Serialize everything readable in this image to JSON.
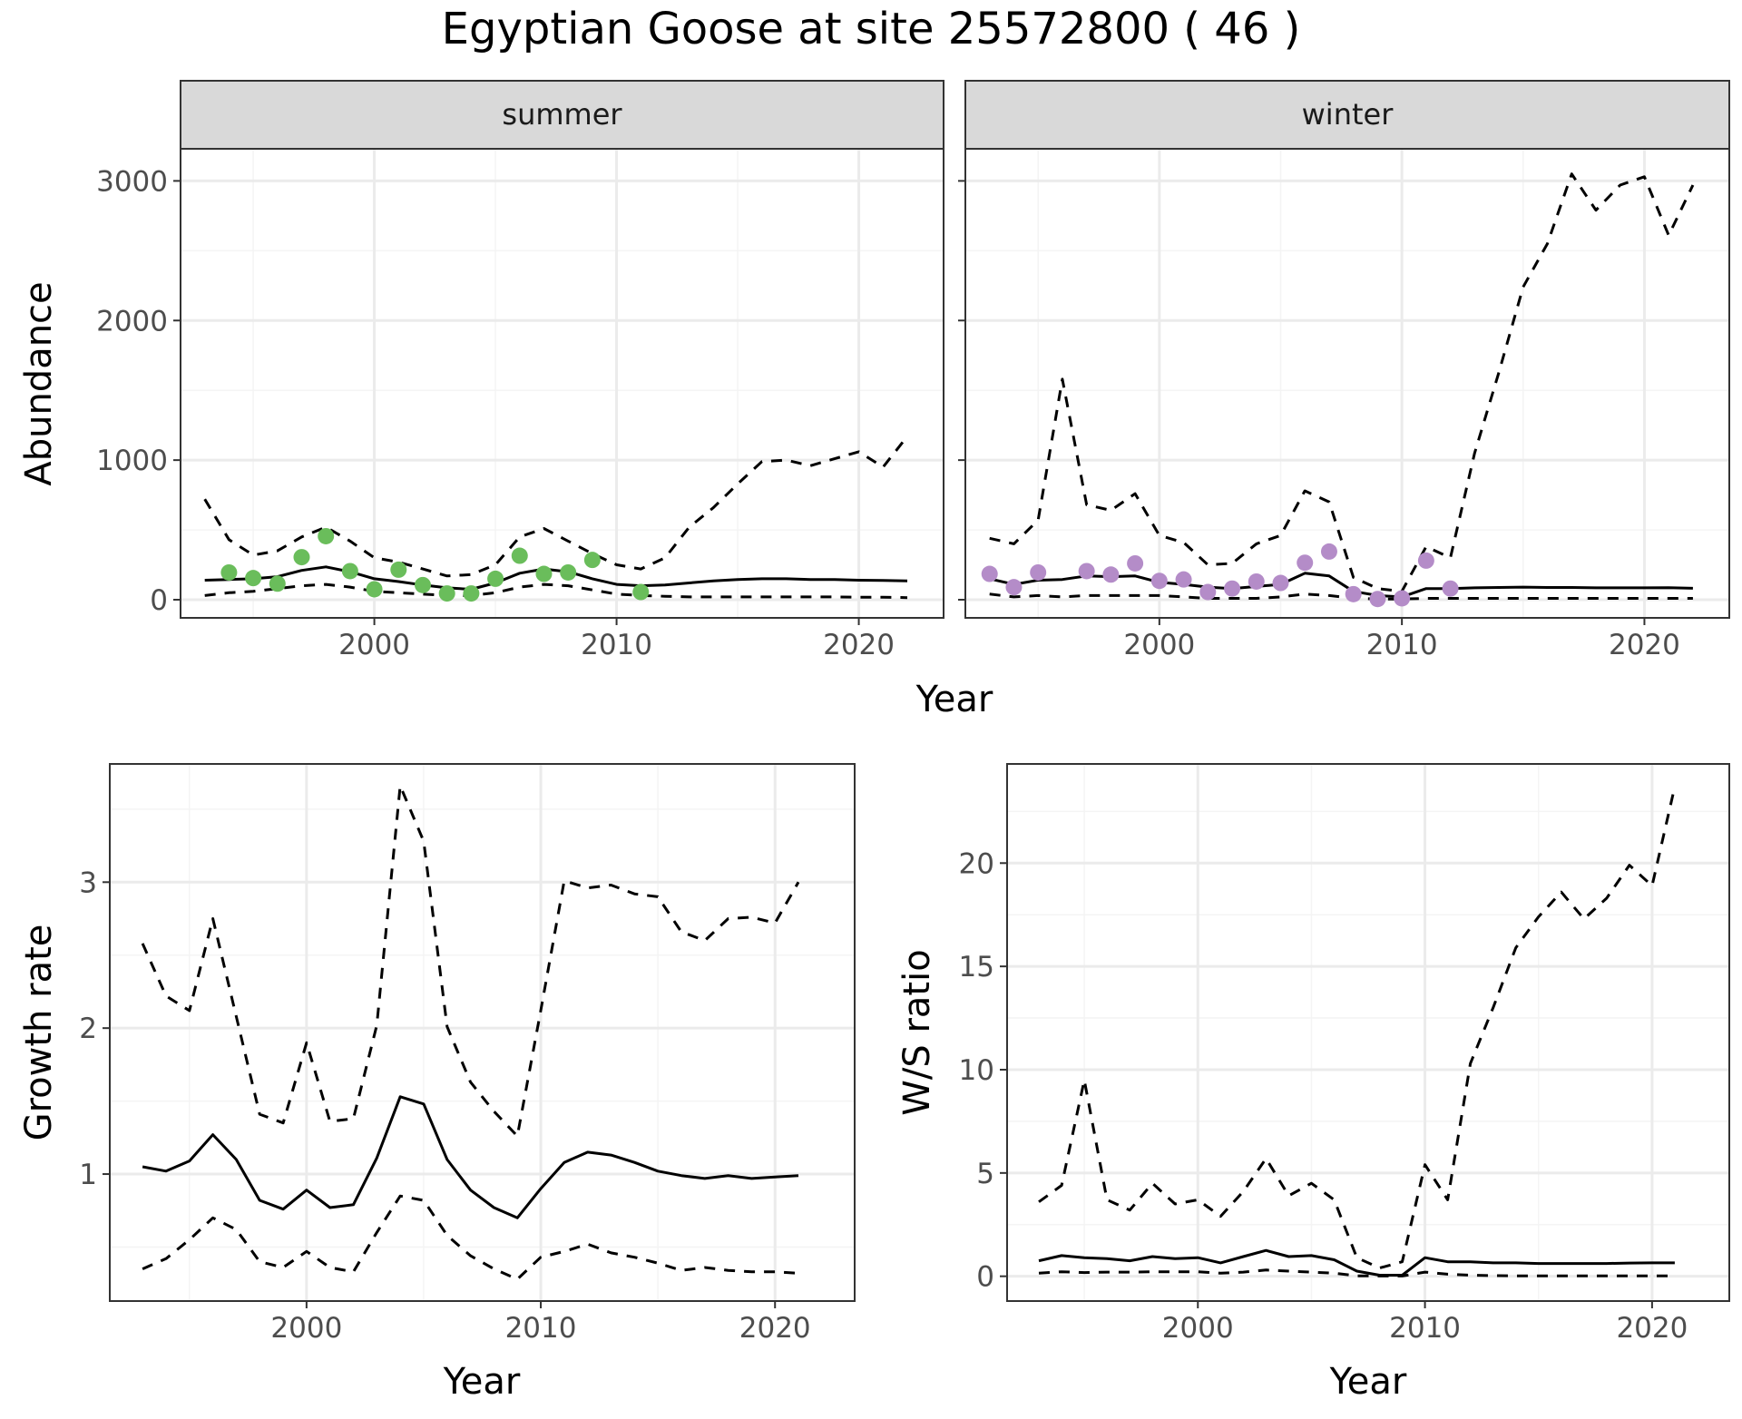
{
  "title": "Egyptian Goose at site 25572800 ( 46 )",
  "colors": {
    "summer_points": "#6ABD5B",
    "winter_points": "#B48CC8",
    "strip_fill": "#D9D9D9",
    "grid_major": "#EBEBEB",
    "grid_minor": "#F4F4F4",
    "line": "#000000"
  },
  "chart_data": [
    {
      "type": "line",
      "panel": "abundance-summer",
      "strip_label": "summer",
      "ylabel": "Abundance",
      "xlabel": "Year",
      "xlim": [
        1992,
        2023.5
      ],
      "ylim": [
        -130,
        3230
      ],
      "xticks": [
        2000,
        2010,
        2020
      ],
      "yticks": [
        0,
        1000,
        2000,
        3000
      ],
      "legend": "none",
      "series": [
        {
          "role": "estimate",
          "style": "solid",
          "x": [
            1993,
            1994,
            1995,
            1996,
            1997,
            1998,
            1999,
            2000,
            2001,
            2002,
            2003,
            2004,
            2005,
            2006,
            2007,
            2008,
            2009,
            2010,
            2011,
            2012,
            2013,
            2014,
            2015,
            2016,
            2017,
            2018,
            2019,
            2020,
            2021,
            2022
          ],
          "y": [
            140,
            145,
            150,
            165,
            210,
            235,
            200,
            150,
            130,
            105,
            85,
            75,
            120,
            190,
            220,
            200,
            150,
            110,
            100,
            105,
            120,
            135,
            145,
            150,
            150,
            145,
            145,
            140,
            138,
            135
          ]
        },
        {
          "role": "upper",
          "style": "dashed",
          "x": [
            1993,
            1994,
            1995,
            1996,
            1997,
            1998,
            1999,
            2000,
            2001,
            2002,
            2003,
            2004,
            2005,
            2006,
            2007,
            2008,
            2009,
            2010,
            2011,
            2012,
            2013,
            2014,
            2015,
            2016,
            2017,
            2018,
            2019,
            2020,
            2021,
            2022
          ],
          "y": [
            720,
            430,
            320,
            350,
            450,
            520,
            420,
            300,
            270,
            220,
            170,
            180,
            250,
            450,
            510,
            420,
            330,
            250,
            220,
            300,
            520,
            660,
            830,
            990,
            1000,
            960,
            1010,
            1060,
            950,
            1170
          ]
        },
        {
          "role": "lower",
          "style": "dashed",
          "x": [
            1993,
            1994,
            1995,
            1996,
            1997,
            1998,
            1999,
            2000,
            2001,
            2002,
            2003,
            2004,
            2005,
            2006,
            2007,
            2008,
            2009,
            2010,
            2011,
            2012,
            2013,
            2014,
            2015,
            2016,
            2017,
            2018,
            2019,
            2020,
            2021,
            2022
          ],
          "y": [
            30,
            50,
            60,
            80,
            100,
            110,
            90,
            60,
            50,
            40,
            30,
            30,
            50,
            90,
            110,
            100,
            70,
            40,
            30,
            25,
            20,
            20,
            20,
            20,
            20,
            20,
            20,
            18,
            18,
            15
          ]
        },
        {
          "role": "observed",
          "style": "points",
          "x": [
            1994,
            1995,
            1996,
            1997,
            1998,
            1999,
            2000,
            2001,
            2002,
            2003,
            2004,
            2005,
            2006,
            2007,
            2008,
            2009,
            2011
          ],
          "y": [
            195,
            155,
            115,
            305,
            455,
            205,
            75,
            215,
            105,
            45,
            45,
            150,
            315,
            185,
            195,
            285,
            55
          ]
        }
      ]
    },
    {
      "type": "line",
      "panel": "abundance-winter",
      "strip_label": "winter",
      "xlim": [
        1992,
        2023.5
      ],
      "ylim": [
        -130,
        3230
      ],
      "xticks": [
        2000,
        2010,
        2020
      ],
      "yticks": [
        0,
        1000,
        2000,
        3000
      ],
      "legend": "none",
      "series": [
        {
          "role": "estimate",
          "style": "solid",
          "x": [
            1993,
            1994,
            1995,
            1996,
            1997,
            1998,
            1999,
            2000,
            2001,
            2002,
            2003,
            2004,
            2005,
            2006,
            2007,
            2008,
            2009,
            2010,
            2011,
            2012,
            2013,
            2014,
            2015,
            2016,
            2017,
            2018,
            2019,
            2020,
            2021,
            2022
          ],
          "y": [
            150,
            110,
            140,
            145,
            170,
            165,
            170,
            125,
            110,
            90,
            80,
            95,
            110,
            190,
            170,
            60,
            30,
            20,
            80,
            80,
            85,
            88,
            90,
            88,
            88,
            85,
            85,
            85,
            86,
            82
          ]
        },
        {
          "role": "upper",
          "style": "dashed",
          "x": [
            1993,
            1994,
            1995,
            1996,
            1997,
            1998,
            1999,
            2000,
            2001,
            2002,
            2003,
            2004,
            2005,
            2006,
            2007,
            2008,
            2009,
            2010,
            2011,
            2012,
            2013,
            2014,
            2015,
            2016,
            2017,
            2018,
            2019,
            2020,
            2021,
            2022
          ],
          "y": [
            440,
            400,
            570,
            1580,
            680,
            640,
            760,
            460,
            410,
            250,
            260,
            400,
            460,
            780,
            700,
            160,
            80,
            60,
            380,
            300,
            1050,
            1630,
            2240,
            2550,
            3050,
            2790,
            2970,
            3030,
            2610,
            2970
          ]
        },
        {
          "role": "lower",
          "style": "dashed",
          "x": [
            1993,
            1994,
            1995,
            1996,
            1997,
            1998,
            1999,
            2000,
            2001,
            2002,
            2003,
            2004,
            2005,
            2006,
            2007,
            2008,
            2009,
            2010,
            2011,
            2012,
            2013,
            2014,
            2015,
            2016,
            2017,
            2018,
            2019,
            2020,
            2021,
            2022
          ],
          "y": [
            40,
            20,
            30,
            20,
            30,
            30,
            30,
            30,
            20,
            10,
            10,
            10,
            20,
            40,
            30,
            10,
            5,
            5,
            10,
            10,
            10,
            10,
            10,
            10,
            10,
            10,
            10,
            10,
            10,
            10
          ]
        },
        {
          "role": "observed",
          "style": "points",
          "x": [
            1993,
            1994,
            1995,
            1997,
            1998,
            1999,
            2000,
            2001,
            2002,
            2003,
            2004,
            2005,
            2006,
            2007,
            2008,
            2009,
            2010,
            2011,
            2012
          ],
          "y": [
            185,
            90,
            195,
            205,
            180,
            260,
            135,
            145,
            55,
            80,
            130,
            120,
            265,
            345,
            40,
            5,
            10,
            280,
            80
          ]
        }
      ]
    },
    {
      "type": "line",
      "panel": "growth-rate",
      "ylabel": "Growth rate",
      "xlabel": "Year",
      "xlim": [
        1991.6,
        2023.4
      ],
      "ylim": [
        0.13,
        3.81
      ],
      "xticks": [
        2000,
        2010,
        2020
      ],
      "yticks": [
        1,
        2,
        3
      ],
      "legend": "none",
      "series": [
        {
          "role": "estimate",
          "style": "solid",
          "x": [
            1993,
            1994,
            1995,
            1996,
            1997,
            1998,
            1999,
            2000,
            2001,
            2002,
            2003,
            2004,
            2005,
            2006,
            2007,
            2008,
            2009,
            2010,
            2011,
            2012,
            2013,
            2014,
            2015,
            2016,
            2017,
            2018,
            2019,
            2020,
            2021
          ],
          "y": [
            1.05,
            1.02,
            1.09,
            1.27,
            1.1,
            0.82,
            0.76,
            0.89,
            0.77,
            0.79,
            1.11,
            1.53,
            1.48,
            1.1,
            0.89,
            0.77,
            0.7,
            0.9,
            1.08,
            1.15,
            1.13,
            1.08,
            1.02,
            0.99,
            0.97,
            0.99,
            0.97,
            0.98,
            0.99
          ]
        },
        {
          "role": "upper",
          "style": "dashed",
          "x": [
            1993,
            1994,
            1995,
            1996,
            1997,
            1998,
            1999,
            2000,
            2001,
            2002,
            2003,
            2004,
            2005,
            2006,
            2007,
            2008,
            2009,
            2010,
            2011,
            2012,
            2013,
            2014,
            2015,
            2016,
            2017,
            2018,
            2019,
            2020,
            2021
          ],
          "y": [
            2.58,
            2.22,
            2.12,
            2.75,
            2.08,
            1.41,
            1.35,
            1.9,
            1.36,
            1.38,
            2.02,
            3.66,
            3.28,
            2.01,
            1.63,
            1.43,
            1.26,
            2.12,
            3.01,
            2.96,
            2.98,
            2.92,
            2.9,
            2.66,
            2.6,
            2.75,
            2.76,
            2.72,
            3.0
          ]
        },
        {
          "role": "lower",
          "style": "dashed",
          "x": [
            1993,
            1994,
            1995,
            1996,
            1997,
            1998,
            1999,
            2000,
            2001,
            2002,
            2003,
            2004,
            2005,
            2006,
            2007,
            2008,
            2009,
            2010,
            2011,
            2012,
            2013,
            2014,
            2015,
            2016,
            2017,
            2018,
            2019,
            2020,
            2021
          ],
          "y": [
            0.35,
            0.42,
            0.55,
            0.7,
            0.62,
            0.4,
            0.36,
            0.47,
            0.36,
            0.33,
            0.6,
            0.85,
            0.82,
            0.58,
            0.44,
            0.35,
            0.28,
            0.43,
            0.47,
            0.52,
            0.46,
            0.43,
            0.39,
            0.34,
            0.36,
            0.34,
            0.33,
            0.33,
            0.32
          ]
        }
      ]
    },
    {
      "type": "line",
      "panel": "ws-ratio",
      "ylabel": "W/S ratio",
      "xlabel": "Year",
      "xlim": [
        1991.6,
        2023.4
      ],
      "ylim": [
        -1.2,
        24.8
      ],
      "xticks": [
        2000,
        2010,
        2020
      ],
      "yticks": [
        0,
        5,
        10,
        15,
        20
      ],
      "legend": "none",
      "series": [
        {
          "role": "estimate",
          "style": "solid",
          "x": [
            1993,
            1994,
            1995,
            1996,
            1997,
            1998,
            1999,
            2000,
            2001,
            2002,
            2003,
            2004,
            2005,
            2006,
            2007,
            2008,
            2009,
            2010,
            2011,
            2012,
            2013,
            2014,
            2015,
            2016,
            2017,
            2018,
            2019,
            2020,
            2021
          ],
          "y": [
            0.75,
            1.0,
            0.9,
            0.85,
            0.75,
            0.95,
            0.85,
            0.9,
            0.65,
            0.95,
            1.25,
            0.95,
            1.0,
            0.8,
            0.25,
            0.05,
            0.05,
            0.9,
            0.7,
            0.7,
            0.65,
            0.65,
            0.62,
            0.62,
            0.62,
            0.62,
            0.64,
            0.65,
            0.65
          ]
        },
        {
          "role": "upper",
          "style": "dashed",
          "x": [
            1993,
            1994,
            1995,
            1996,
            1997,
            1998,
            1999,
            2000,
            2001,
            2002,
            2003,
            2004,
            2005,
            2006,
            2007,
            2008,
            2009,
            2010,
            2011,
            2012,
            2013,
            2014,
            2015,
            2016,
            2017,
            2018,
            2019,
            2020,
            2021
          ],
          "y": [
            3.6,
            4.4,
            9.5,
            3.7,
            3.2,
            4.5,
            3.5,
            3.7,
            2.9,
            4.1,
            5.7,
            3.9,
            4.5,
            3.7,
            0.9,
            0.4,
            0.7,
            5.4,
            3.7,
            10.3,
            13.0,
            15.9,
            17.4,
            18.6,
            17.3,
            18.3,
            19.9,
            18.9,
            23.7
          ]
        },
        {
          "role": "lower",
          "style": "dashed",
          "x": [
            1993,
            1994,
            1995,
            1996,
            1997,
            1998,
            1999,
            2000,
            2001,
            2002,
            2003,
            2004,
            2005,
            2006,
            2007,
            2008,
            2009,
            2010,
            2011,
            2012,
            2013,
            2014,
            2015,
            2016,
            2017,
            2018,
            2019,
            2020,
            2021
          ],
          "y": [
            0.15,
            0.22,
            0.18,
            0.2,
            0.2,
            0.22,
            0.22,
            0.22,
            0.15,
            0.2,
            0.3,
            0.25,
            0.2,
            0.15,
            0.02,
            0.01,
            0.01,
            0.2,
            0.1,
            0.05,
            0.03,
            0.02,
            0.02,
            0.02,
            0.02,
            0.02,
            0.02,
            0.02,
            0.02
          ]
        }
      ]
    }
  ]
}
